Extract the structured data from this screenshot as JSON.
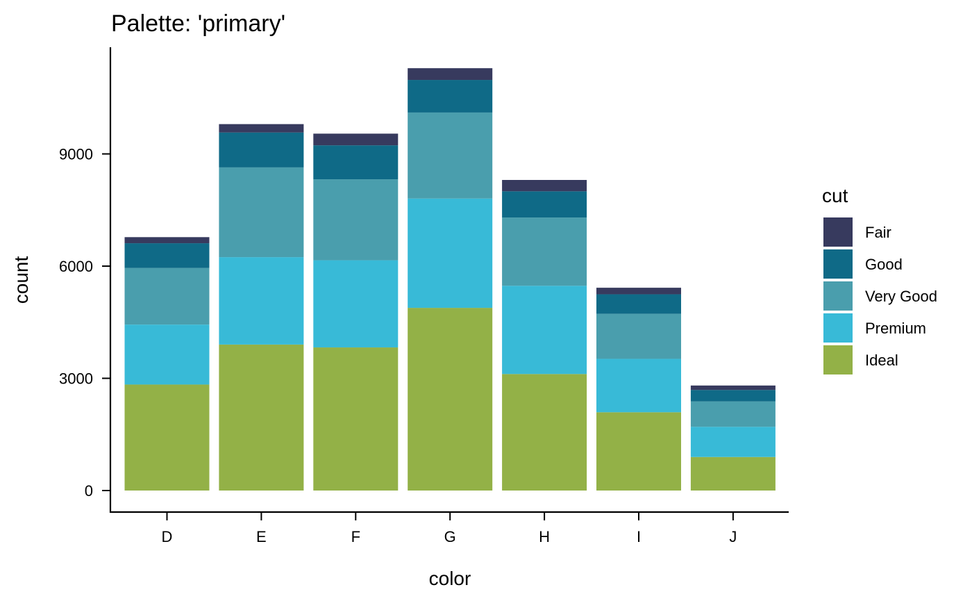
{
  "chart_data": {
    "type": "bar",
    "stacked": true,
    "title": "Palette: 'primary'",
    "xlabel": "color",
    "ylabel": "count",
    "categories": [
      "D",
      "E",
      "F",
      "G",
      "H",
      "I",
      "J"
    ],
    "ylim": [
      0,
      11292
    ],
    "yticks": [
      0,
      3000,
      6000,
      9000
    ],
    "ytick_labels": [
      "0",
      "3000",
      "6000",
      "9000"
    ],
    "grid": false,
    "legend": {
      "title": "cut",
      "placement": "right"
    },
    "series": [
      {
        "name": "Fair",
        "color": "#373A5E",
        "values": [
          163,
          224,
          312,
          314,
          303,
          175,
          119
        ]
      },
      {
        "name": "Good",
        "color": "#0F6A87",
        "values": [
          662,
          933,
          909,
          871,
          702,
          522,
          307
        ]
      },
      {
        "name": "Very Good",
        "color": "#4A9EAD",
        "values": [
          1513,
          2400,
          2164,
          2299,
          1824,
          1204,
          678
        ]
      },
      {
        "name": "Premium",
        "color": "#38BAD7",
        "values": [
          1603,
          2337,
          2331,
          2924,
          2360,
          1428,
          808
        ]
      },
      {
        "name": "Ideal",
        "color": "#93B147",
        "values": [
          2834,
          3903,
          3826,
          4884,
          3115,
          2093,
          896
        ]
      }
    ]
  }
}
